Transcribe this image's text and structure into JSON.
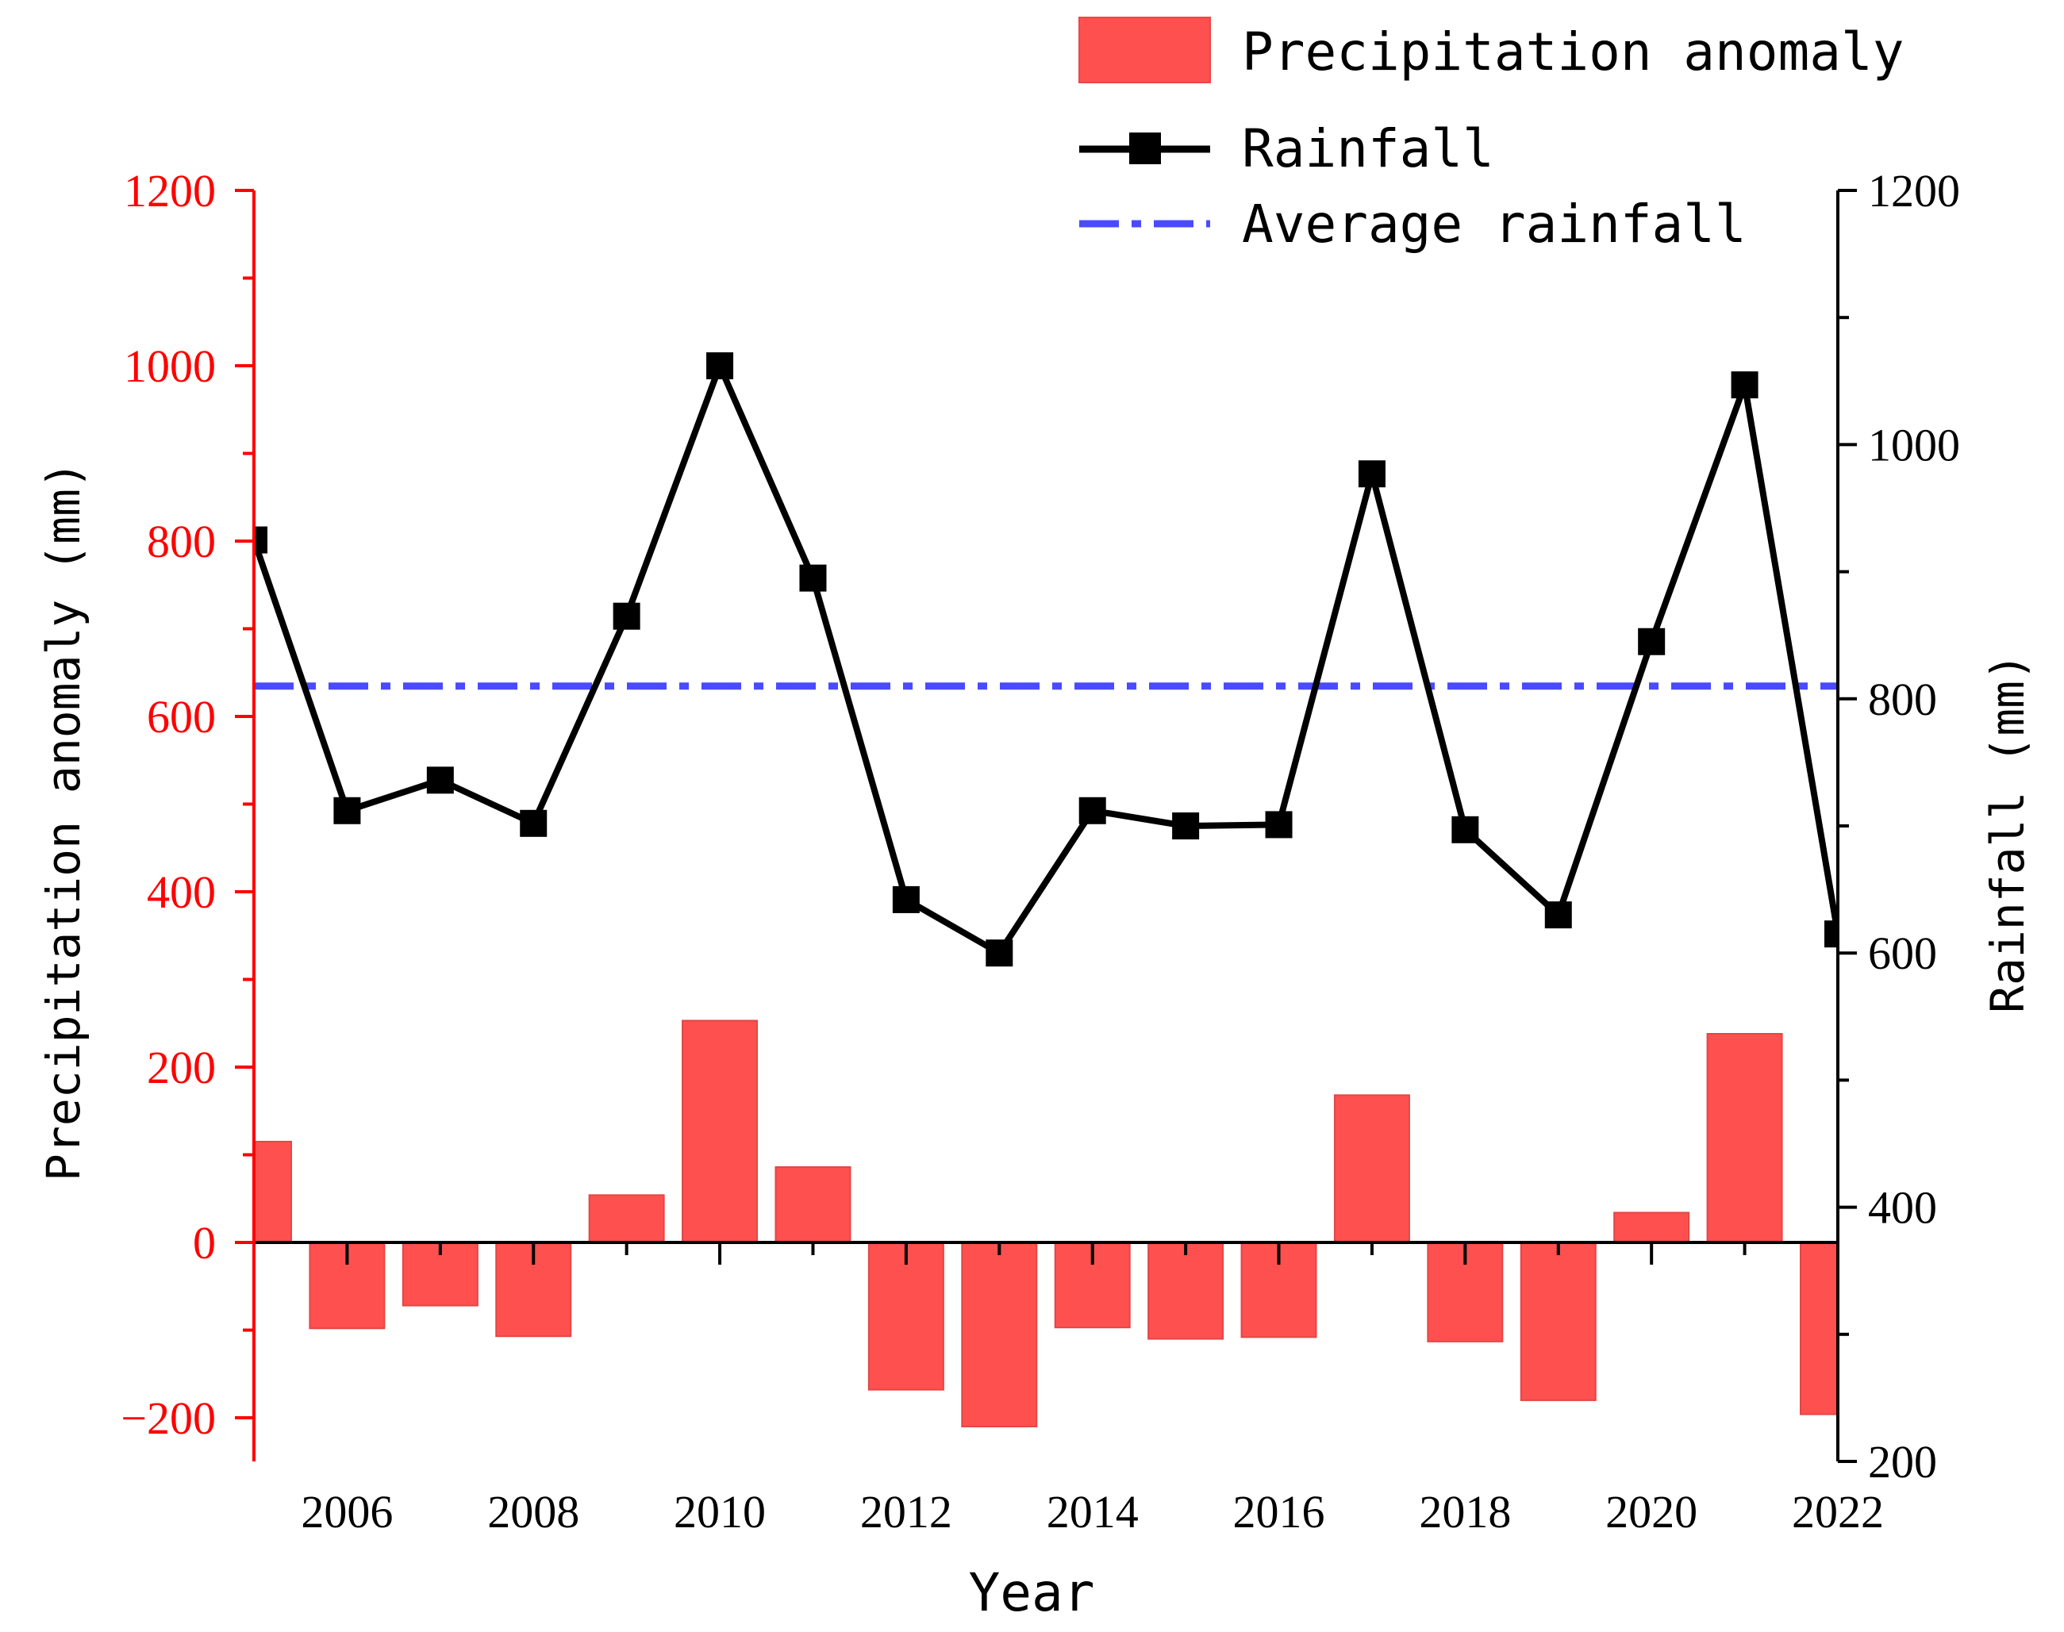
{
  "chart_data": {
    "type": "bar+line",
    "xlabel": "Year",
    "x_ticks": [
      "2006",
      "2008",
      "2010",
      "2012",
      "2014",
      "2016",
      "2018",
      "2020",
      "2022"
    ],
    "years": [
      2005,
      2006,
      2007,
      2008,
      2009,
      2010,
      2011,
      2012,
      2013,
      2014,
      2015,
      2016,
      2017,
      2018,
      2019,
      2020,
      2021,
      2022
    ],
    "xlim": [
      2005,
      2022
    ],
    "left_axis": {
      "label": "Precipitation anomaly (mm)",
      "ylim": [
        -250,
        1200
      ],
      "ticks": [
        "-200",
        "0",
        "200",
        "400",
        "600",
        "800",
        "1000",
        "1200"
      ],
      "color": "#ff0000"
    },
    "right_axis": {
      "label": "Rainfall (mm)",
      "ylim": [
        200,
        1200
      ],
      "ticks": [
        "200",
        "400",
        "600",
        "800",
        "1000",
        "1200"
      ],
      "color": "#000000"
    },
    "series": [
      {
        "name": "Precipitation anomaly",
        "kind": "bar",
        "axis": "left",
        "color": "#ff5050",
        "values": [
          115,
          -98,
          -72,
          -107,
          54,
          253,
          86,
          -168,
          -210,
          -97,
          -110,
          -108,
          168,
          -113,
          -180,
          34,
          238,
          -196
        ]
      },
      {
        "name": "Rainfall",
        "kind": "line",
        "axis": "right",
        "color": "#000000",
        "values": [
          925,
          712,
          736,
          702,
          865,
          1062,
          895,
          642,
          600,
          712,
          700,
          701,
          977,
          697,
          630,
          845,
          1047,
          615
        ]
      },
      {
        "name": "Average rainfall",
        "kind": "hline",
        "axis": "right",
        "color": "#4a4aff",
        "value": 810
      }
    ],
    "legend": {
      "position": "top-right",
      "entries": [
        "Precipitation anomaly",
        "Rainfall",
        "Average rainfall"
      ]
    }
  }
}
